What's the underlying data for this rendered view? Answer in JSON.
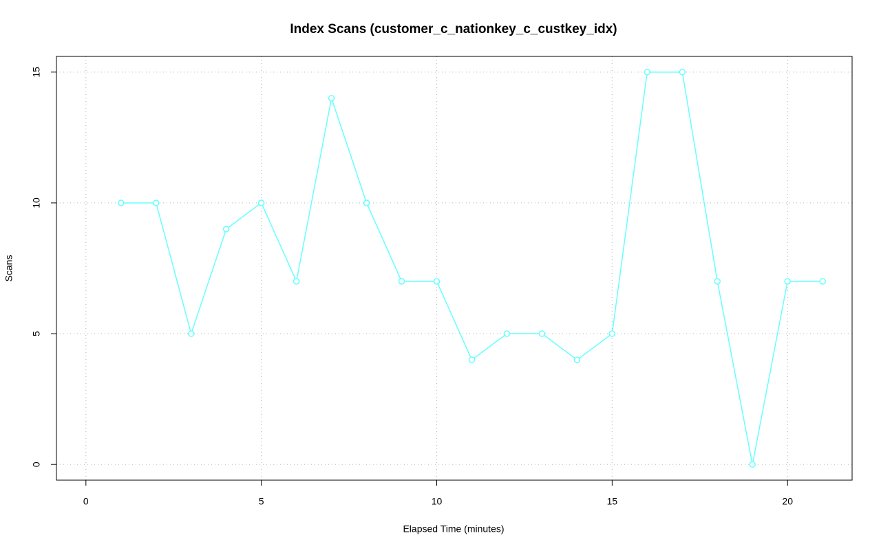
{
  "chart_data": {
    "type": "line",
    "title": "Index Scans (customer_c_nationkey_c_custkey_idx)",
    "x_label": "Elapsed Time (minutes)",
    "y_label": "Scans",
    "x": [
      1,
      2,
      3,
      4,
      5,
      6,
      7,
      8,
      9,
      10,
      11,
      12,
      13,
      14,
      15,
      16,
      17,
      18,
      19,
      20,
      21
    ],
    "values": [
      10,
      10,
      5,
      9,
      10,
      7,
      14,
      10,
      7,
      7,
      4,
      5,
      5,
      4,
      5,
      15,
      15,
      7,
      0,
      7,
      7
    ],
    "color": "#66ffff",
    "xlim": [
      -0.84,
      21.84
    ],
    "xticks": [
      0,
      5,
      10,
      15,
      20
    ],
    "ylim": [
      -0.6,
      15.6
    ],
    "yticks": [
      0,
      5,
      10,
      15
    ],
    "grid": true
  }
}
